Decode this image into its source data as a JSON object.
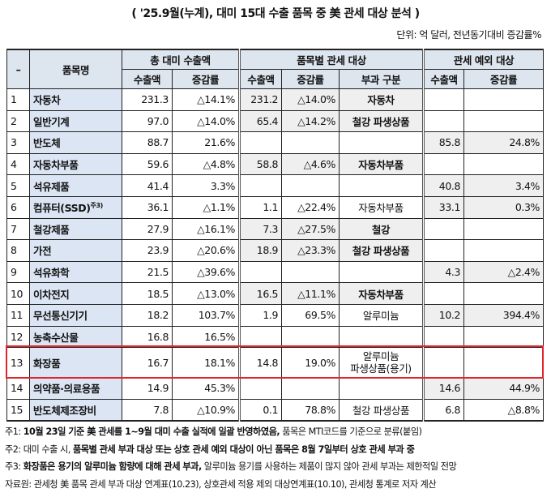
{
  "title": "( '25.9월(누계), 대미 15대 수출 품목 중 美 관세 대상 분석 )",
  "unit": "단위: 억 달러, 전년동기대비 증감률%",
  "header": {
    "dash": "–",
    "item": "품목명",
    "group1": "총 대미 수출액",
    "group2": "품목별 관세 대상",
    "group3": "관세 예외 대상",
    "export": "수출액",
    "change": "증감률",
    "category": "부과 구분"
  },
  "rows": [
    {
      "no": "1",
      "name": "자동차",
      "sup": "",
      "total": "231.3",
      "total_chg": "△14.1%",
      "t_exp": "231.2",
      "t_chg": "△14.0%",
      "cat": "자동차",
      "t_shaded": true,
      "e_exp": "",
      "e_chg": "",
      "e_shaded": false
    },
    {
      "no": "2",
      "name": "일반기계",
      "sup": "",
      "total": "97.0",
      "total_chg": "△14.0%",
      "t_exp": "65.4",
      "t_chg": "△14.2%",
      "cat": "철강 파생상품",
      "t_shaded": true,
      "e_exp": "",
      "e_chg": "",
      "e_shaded": false
    },
    {
      "no": "3",
      "name": "반도체",
      "sup": "",
      "total": "88.7",
      "total_chg": "21.6%",
      "t_exp": "",
      "t_chg": "",
      "cat": "",
      "t_shaded": false,
      "e_exp": "85.8",
      "e_chg": "24.8%",
      "e_shaded": true
    },
    {
      "no": "4",
      "name": "자동차부품",
      "sup": "",
      "total": "59.6",
      "total_chg": "△4.8%",
      "t_exp": "58.8",
      "t_chg": "△4.6%",
      "cat": "자동차부품",
      "t_shaded": true,
      "e_exp": "",
      "e_chg": "",
      "e_shaded": false
    },
    {
      "no": "5",
      "name": "석유제품",
      "sup": "",
      "total": "41.4",
      "total_chg": "3.3%",
      "t_exp": "",
      "t_chg": "",
      "cat": "",
      "t_shaded": false,
      "e_exp": "40.8",
      "e_chg": "3.4%",
      "e_shaded": true
    },
    {
      "no": "6",
      "name": "컴퓨터(SSD)",
      "sup": "주3)",
      "total": "36.1",
      "total_chg": "△1.1%",
      "t_exp": "1.1",
      "t_chg": "△22.4%",
      "cat": "자동차부품",
      "t_shaded": false,
      "e_exp": "33.1",
      "e_chg": "0.3%",
      "e_shaded": true
    },
    {
      "no": "7",
      "name": "철강제품",
      "sup": "",
      "total": "27.9",
      "total_chg": "△16.1%",
      "t_exp": "7.3",
      "t_chg": "△27.5%",
      "cat": "철강",
      "t_shaded": true,
      "e_exp": "",
      "e_chg": "",
      "e_shaded": false
    },
    {
      "no": "8",
      "name": "가전",
      "sup": "",
      "total": "23.9",
      "total_chg": "△20.6%",
      "t_exp": "18.9",
      "t_chg": "△23.3%",
      "cat": "철강 파생상품",
      "t_shaded": true,
      "e_exp": "",
      "e_chg": "",
      "e_shaded": false
    },
    {
      "no": "9",
      "name": "석유화학",
      "sup": "",
      "total": "21.5",
      "total_chg": "△39.6%",
      "t_exp": "",
      "t_chg": "",
      "cat": "",
      "t_shaded": false,
      "e_exp": "4.3",
      "e_chg": "△2.4%",
      "e_shaded": true
    },
    {
      "no": "10",
      "name": "이차전지",
      "sup": "",
      "total": "18.5",
      "total_chg": "△13.0%",
      "t_exp": "16.5",
      "t_chg": "△11.1%",
      "cat": "자동차부품",
      "t_shaded": true,
      "e_exp": "",
      "e_chg": "",
      "e_shaded": false
    },
    {
      "no": "11",
      "name": "무선통신기기",
      "sup": "",
      "total": "18.2",
      "total_chg": "103.7%",
      "t_exp": "1.9",
      "t_chg": "69.5%",
      "cat": "알루미늄",
      "t_shaded": false,
      "e_exp": "10.2",
      "e_chg": "394.4%",
      "e_shaded": true
    },
    {
      "no": "12",
      "name": "농축수산물",
      "sup": "",
      "total": "16.8",
      "total_chg": "16.5%",
      "t_exp": "",
      "t_chg": "",
      "cat": "",
      "t_shaded": false,
      "e_exp": "",
      "e_chg": "",
      "e_shaded": false
    },
    {
      "no": "13",
      "name": "화장품",
      "sup": "",
      "total": "16.7",
      "total_chg": "18.1%",
      "t_exp": "14.8",
      "t_chg": "19.0%",
      "cat": "알루미늄\n파생상품(용기)",
      "t_shaded": false,
      "e_exp": "",
      "e_chg": "",
      "e_shaded": false,
      "highlight": true
    },
    {
      "no": "14",
      "name": "의약품·의료용품",
      "sup": "",
      "total": "14.9",
      "total_chg": "45.3%",
      "t_exp": "",
      "t_chg": "",
      "cat": "",
      "t_shaded": false,
      "e_exp": "14.6",
      "e_chg": "44.9%",
      "e_shaded": true
    },
    {
      "no": "15",
      "name": "반도체제조장비",
      "sup": "",
      "total": "7.8",
      "total_chg": "△10.9%",
      "t_exp": "0.1",
      "t_chg": "78.8%",
      "cat": "철강 파생상품",
      "t_shaded": false,
      "e_exp": "6.8",
      "e_chg": "△8.8%",
      "e_shaded": false
    }
  ],
  "notes": [
    [
      {
        "t": "주1: ",
        "b": false
      },
      {
        "t": "10월 23일 기준 美 관세를 1~9월 대미 수출 실적에 일괄 반영하였음,",
        "b": true
      },
      {
        "t": " 품목은 MTI코드를 기준으로 분류(붙임)",
        "b": false
      }
    ],
    [
      {
        "t": "주2: 대미 수출 시, ",
        "b": false
      },
      {
        "t": "품목별 관세 부과 대상 또는 상호 관세 예외 대상이 아닌 품목은 8월 7일부터 상호 관세 부과 중",
        "b": true
      }
    ],
    [
      {
        "t": "주3: ",
        "b": false
      },
      {
        "t": "화장품은 용기의 알루미늄 함량에 대해 관세 부과,",
        "b": true
      },
      {
        "t": " 알루미늄 용기를 사용하는 제품이 많지 않아 관세 부과는 제한적일 전망",
        "b": false
      }
    ],
    [
      {
        "t": "자료원: 관세청 美 품목 관세 부과 대상 연계표(10.23), 상호관세 적용 제외 대상연계표(10.10), 관세청 통계로 저자 계산",
        "b": false
      }
    ]
  ]
}
